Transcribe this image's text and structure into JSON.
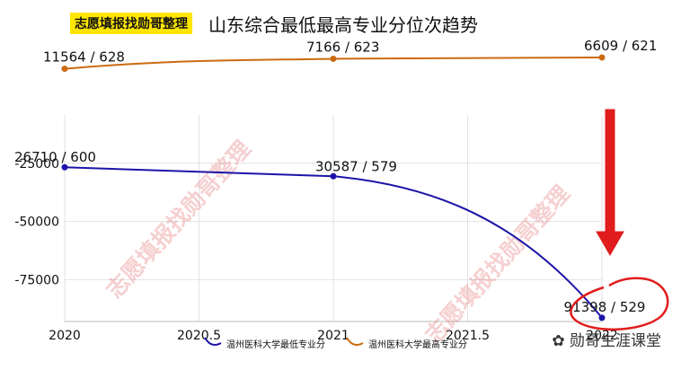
{
  "header": {
    "badge_text": "志愿填报找勋哥整理",
    "title": "山东综合最低最高专业分位次趋势"
  },
  "watermark": "志愿填报找勋哥整理",
  "footer_brand": "勋哥生涯课堂",
  "colors": {
    "min_series": "#1c14a8",
    "max_series": "#cc6a12",
    "highlight": "#e01c1c",
    "badge_bg": "#ffe600"
  },
  "chart_data": {
    "type": "line",
    "title": "山东综合最低最高专业分位次趋势",
    "xlabel": "",
    "ylabel": "",
    "xlim": [
      2020,
      2022
    ],
    "ylim": [
      -93000,
      22000
    ],
    "x_ticks": [
      "2020",
      "2020.5",
      "2021",
      "2021.5",
      "2022"
    ],
    "y_ticks": [
      "-25000",
      "-50000",
      "-75000"
    ],
    "y_tick_values": [
      -25000,
      -50000,
      -75000
    ],
    "grid": true,
    "legend_position": "bottom",
    "series": [
      {
        "name": "温州医科大学最低专业分",
        "color": "#1c14a8",
        "x": [
          2020,
          2021,
          2022
        ],
        "y": [
          -26710,
          -30587,
          -91398
        ],
        "labels": [
          "26710 / 600",
          "30587 / 579",
          "91398 / 529"
        ]
      },
      {
        "name": "温州医科大学最高专业分",
        "color": "#cc6a12",
        "x": [
          2020,
          2021,
          2022
        ],
        "y": [
          15600,
          19900,
          20450
        ],
        "labels": [
          "11564 / 628",
          "7166 / 623",
          "6609 / 621"
        ]
      }
    ]
  }
}
